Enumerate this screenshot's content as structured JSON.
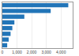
{
  "chart_data": {
    "type": "bar",
    "orientation": "horizontal",
    "categories": [
      null,
      null,
      null,
      null,
      null,
      null,
      null,
      null
    ],
    "values": [
      4500,
      3300,
      1500,
      820,
      680,
      560,
      430,
      330
    ],
    "color": "#2275b8",
    "xlim": [
      0,
      4800
    ],
    "xticks": [
      0,
      {
        "value": 1000,
        "label": "1,000"
      },
      {
        "value": 2000,
        "label": "2,000"
      },
      {
        "value": 3000,
        "label": "3,000"
      },
      {
        "value": 4000,
        "label": "4,000"
      }
    ],
    "grid": true,
    "tick_labels": "x"
  }
}
